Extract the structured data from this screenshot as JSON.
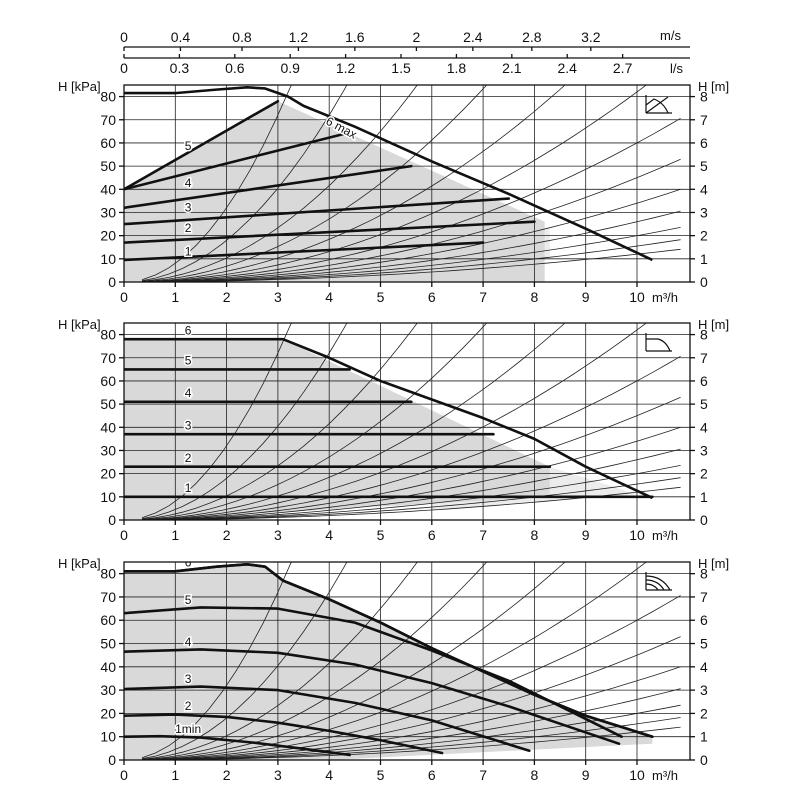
{
  "top_axes": {
    "velocity": {
      "unit": "m/s",
      "ticks": [
        {
          "label": "0",
          "m3h": 0
        },
        {
          "label": "0.4",
          "m3h": 1.1
        },
        {
          "label": "0.8",
          "m3h": 2.3
        },
        {
          "label": "1.2",
          "m3h": 3.4
        },
        {
          "label": "1.6",
          "m3h": 4.5
        },
        {
          "label": "2",
          "m3h": 5.7
        },
        {
          "label": "2.4",
          "m3h": 6.8
        },
        {
          "label": "2.8",
          "m3h": 7.95
        },
        {
          "label": "3.2",
          "m3h": 9.1
        }
      ]
    },
    "flow_ls": {
      "unit": "l/s",
      "ticks": [
        {
          "label": "0",
          "m3h": 0
        },
        {
          "label": "0.3",
          "m3h": 1.08
        },
        {
          "label": "0.6",
          "m3h": 2.16
        },
        {
          "label": "0.9",
          "m3h": 3.24
        },
        {
          "label": "1.2",
          "m3h": 4.32
        },
        {
          "label": "1.5",
          "m3h": 5.4
        },
        {
          "label": "1.8",
          "m3h": 6.48
        },
        {
          "label": "2.1",
          "m3h": 7.56
        },
        {
          "label": "2.4",
          "m3h": 8.64
        },
        {
          "label": "2.7",
          "m3h": 9.72
        }
      ]
    }
  },
  "chart_data": [
    {
      "type": "line",
      "mode_icon": "proportional-pressure-icon",
      "xlabel": "m³/h",
      "ylabel_left": "H [kPa]",
      "ylabel_right": "H [m]",
      "xlim": [
        0,
        10.5
      ],
      "ylim": [
        0,
        85
      ],
      "x_ticks": [
        "0",
        "1",
        "2",
        "3",
        "4",
        "5",
        "6",
        "7",
        "8",
        "9",
        "10"
      ],
      "y_ticks": [
        "0",
        "10",
        "20",
        "30",
        "40",
        "50",
        "60",
        "70",
        "80"
      ],
      "y2_ticks": [
        "0",
        "1",
        "2",
        "3",
        "4",
        "5",
        "6",
        "7",
        "8"
      ],
      "envelope": {
        "name": "6 max",
        "x": [
          0,
          0.3,
          1,
          1.8,
          2.4,
          2.75,
          3.2,
          3.5,
          4.5,
          6,
          7.5,
          9,
          10.3
        ],
        "y": [
          81.5,
          81.5,
          81.5,
          83,
          84,
          83.5,
          80,
          76,
          67,
          52,
          38,
          23,
          9.5
        ]
      },
      "shade_curve": {
        "x": [
          0,
          3,
          8.2
        ],
        "y": [
          40,
          78,
          26
        ]
      },
      "series": [
        {
          "name": "1",
          "x": [
            0,
            7
          ],
          "y": [
            9.5,
            17
          ]
        },
        {
          "name": "2",
          "x": [
            0,
            8
          ],
          "y": [
            17,
            26
          ]
        },
        {
          "name": "3",
          "x": [
            0,
            7.5
          ],
          "y": [
            25,
            36
          ]
        },
        {
          "name": "4",
          "x": [
            0,
            5.6
          ],
          "y": [
            32,
            50
          ]
        },
        {
          "name": "5",
          "x": [
            0,
            4.3
          ],
          "y": [
            40,
            64
          ]
        },
        {
          "name": "6 max",
          "x": [
            0,
            3
          ],
          "y": [
            40,
            78
          ]
        }
      ],
      "label_positions": [
        {
          "text": "1",
          "x": 1.25,
          "y": 11.5
        },
        {
          "text": "2",
          "x": 1.25,
          "y": 21.5
        },
        {
          "text": "3",
          "x": 1.25,
          "y": 30.5
        },
        {
          "text": "4",
          "x": 1.25,
          "y": 41
        },
        {
          "text": "5",
          "x": 1.25,
          "y": 57
        },
        {
          "text": "6 max",
          "x": 4.2,
          "y": 65
        }
      ]
    },
    {
      "type": "line",
      "mode_icon": "constant-pressure-icon",
      "xlabel": "m³/h",
      "ylabel_left": "H [kPa]",
      "ylabel_right": "H [m]",
      "xlim": [
        0,
        10.5
      ],
      "ylim": [
        0,
        85
      ],
      "x_ticks": [
        "0",
        "1",
        "2",
        "3",
        "4",
        "5",
        "6",
        "7",
        "8",
        "9",
        "10"
      ],
      "y_ticks": [
        "0",
        "10",
        "20",
        "30",
        "40",
        "50",
        "60",
        "70",
        "80"
      ],
      "y2_ticks": [
        "0",
        "1",
        "2",
        "3",
        "4",
        "5",
        "6",
        "7",
        "8"
      ],
      "envelope": {
        "name": "6",
        "x": [
          3.1,
          4,
          5,
          6,
          7,
          8,
          9,
          10.3
        ],
        "y": [
          78,
          70,
          60,
          52,
          44,
          35,
          23,
          9.5
        ]
      },
      "shade_curve": {
        "x": [
          0,
          3.1,
          8.3
        ],
        "y": [
          78,
          78,
          23
        ]
      },
      "series": [
        {
          "name": "1",
          "x": [
            0,
            10.3
          ],
          "y": [
            10,
            10
          ]
        },
        {
          "name": "2",
          "x": [
            0,
            8.3
          ],
          "y": [
            23,
            23
          ]
        },
        {
          "name": "3",
          "x": [
            0,
            7.2
          ],
          "y": [
            37,
            37
          ]
        },
        {
          "name": "4",
          "x": [
            0,
            5.6
          ],
          "y": [
            51,
            51
          ]
        },
        {
          "name": "5",
          "x": [
            0,
            4.4
          ],
          "y": [
            65,
            65
          ]
        },
        {
          "name": "6",
          "x": [
            0,
            3.1
          ],
          "y": [
            78,
            78
          ]
        }
      ],
      "label_positions": [
        {
          "text": "1",
          "x": 1.25,
          "y": 12
        },
        {
          "text": "2",
          "x": 1.25,
          "y": 25
        },
        {
          "text": "3",
          "x": 1.25,
          "y": 39
        },
        {
          "text": "4",
          "x": 1.25,
          "y": 53
        },
        {
          "text": "5",
          "x": 1.25,
          "y": 67
        },
        {
          "text": "6",
          "x": 1.25,
          "y": 80
        }
      ]
    },
    {
      "type": "line",
      "mode_icon": "constant-speed-icon",
      "xlabel": "m³/h",
      "ylabel_left": "H [kPa]",
      "ylabel_right": "H [m]",
      "xlim": [
        0,
        10.5
      ],
      "ylim": [
        0,
        85
      ],
      "x_ticks": [
        "0",
        "1",
        "2",
        "3",
        "4",
        "5",
        "6",
        "7",
        "8",
        "9",
        "10"
      ],
      "y_ticks": [
        "0",
        "10",
        "20",
        "30",
        "40",
        "50",
        "60",
        "70",
        "80"
      ],
      "y2_ticks": [
        "0",
        "1",
        "2",
        "3",
        "4",
        "5",
        "6",
        "7",
        "8"
      ],
      "envelope": {
        "name": "6",
        "x": [
          0,
          0.3,
          1,
          1.8,
          2.4,
          2.75,
          3.1,
          4,
          5,
          6,
          7,
          8,
          9,
          10.3
        ],
        "y": [
          81,
          81,
          81,
          83,
          84,
          83,
          77,
          69,
          59,
          48,
          38,
          28,
          19,
          10
        ]
      },
      "series": [
        {
          "name": "1min",
          "x": [
            0,
            0.7,
            1.5,
            2.5,
            3.5,
            4.4
          ],
          "y": [
            10,
            10.2,
            9.6,
            7.5,
            4.8,
            2.2
          ]
        },
        {
          "name": "2",
          "x": [
            0,
            1,
            2,
            3,
            4,
            5,
            6.2
          ],
          "y": [
            19,
            19.5,
            18.5,
            16,
            12.5,
            8.5,
            3
          ]
        },
        {
          "name": "3",
          "x": [
            0,
            1.5,
            3,
            4.5,
            6,
            7.9
          ],
          "y": [
            30.5,
            31.5,
            30,
            24.5,
            17,
            4
          ]
        },
        {
          "name": "4",
          "x": [
            0,
            1.5,
            3,
            4.5,
            6,
            7.5,
            9.65
          ],
          "y": [
            46.5,
            47.5,
            46,
            41,
            33,
            23,
            7
          ]
        },
        {
          "name": "5",
          "x": [
            0,
            1.5,
            3,
            4.5,
            6,
            7.5,
            9.7
          ],
          "y": [
            63,
            65.5,
            65,
            59,
            47,
            34,
            10
          ]
        },
        {
          "name": "6",
          "x": [
            0,
            0.3,
            1,
            1.8,
            2.4,
            2.75,
            3.1,
            4,
            5,
            6,
            7,
            8,
            9,
            10.3
          ],
          "y": [
            81,
            81,
            81,
            83,
            84,
            83,
            77,
            69,
            59,
            48,
            38,
            28,
            19,
            10
          ]
        }
      ],
      "label_positions": [
        {
          "text": "1min",
          "x": 1.25,
          "y": 11.5
        },
        {
          "text": "2",
          "x": 1.25,
          "y": 21.5
        },
        {
          "text": "3",
          "x": 1.25,
          "y": 33
        },
        {
          "text": "4",
          "x": 1.25,
          "y": 49
        },
        {
          "text": "5",
          "x": 1.25,
          "y": 67
        },
        {
          "text": "6",
          "x": 1.25,
          "y": 83
        }
      ]
    }
  ]
}
